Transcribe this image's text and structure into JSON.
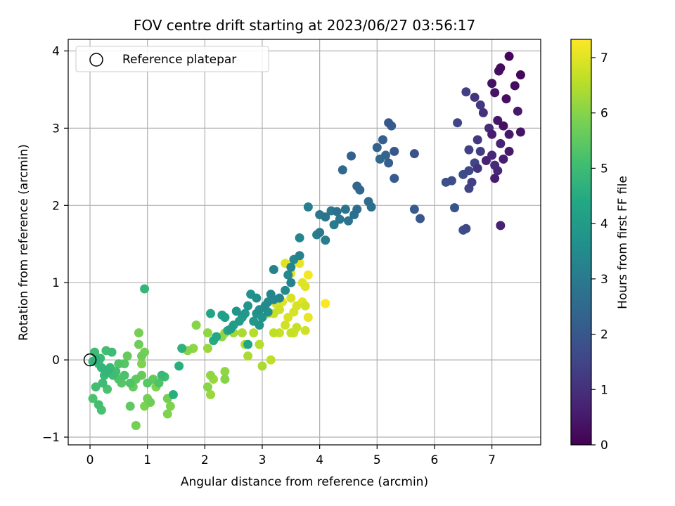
{
  "chart_data": {
    "type": "scatter",
    "title": "FOV centre drift starting at 2023/06/27 03:56:17",
    "xlabel": "Angular distance from reference (arcmin)",
    "ylabel": "Rotation from reference (arcmin)",
    "xlim": [
      -0.38,
      7.85
    ],
    "ylim": [
      -1.1,
      4.15
    ],
    "xticks": [
      0,
      1,
      2,
      3,
      4,
      5,
      6,
      7
    ],
    "yticks": [
      -1,
      0,
      1,
      2,
      3,
      4
    ],
    "grid": true,
    "colormap": "viridis",
    "colorbar": {
      "label": "Hours from first FF file",
      "range": [
        0,
        7.33
      ],
      "ticks": [
        0,
        1,
        2,
        3,
        4,
        5,
        6,
        7
      ]
    },
    "legend": {
      "placement": "top-left",
      "entries": [
        {
          "label": "Reference platepar",
          "marker": "hollow-circle"
        }
      ]
    },
    "reference_point": {
      "x": 0,
      "y": 0
    },
    "points": [
      [
        7.3,
        3.93,
        0.1
      ],
      [
        7.15,
        3.78,
        0.2
      ],
      [
        7.5,
        3.69,
        0.15
      ],
      [
        7.12,
        3.74,
        0.3
      ],
      [
        7.0,
        3.58,
        0.35
      ],
      [
        7.4,
        3.55,
        0.25
      ],
      [
        7.05,
        3.46,
        0.4
      ],
      [
        7.25,
        3.38,
        0.3
      ],
      [
        7.45,
        3.22,
        0.5
      ],
      [
        7.1,
        3.1,
        0.45
      ],
      [
        7.2,
        3.03,
        0.3
      ],
      [
        7.5,
        2.95,
        0.4
      ],
      [
        7.3,
        2.92,
        0.5
      ],
      [
        7.0,
        2.92,
        0.6
      ],
      [
        7.15,
        2.8,
        0.7
      ],
      [
        7.3,
        2.7,
        0.5
      ],
      [
        7.0,
        2.65,
        0.8
      ],
      [
        7.2,
        2.6,
        0.6
      ],
      [
        7.05,
        2.52,
        0.9
      ],
      [
        6.9,
        2.58,
        0.7
      ],
      [
        7.1,
        2.45,
        0.8
      ],
      [
        7.05,
        2.35,
        0.6
      ],
      [
        7.15,
        1.74,
        0.7
      ],
      [
        6.55,
        3.47,
        1.3
      ],
      [
        6.7,
        3.4,
        1.1
      ],
      [
        6.8,
        3.3,
        1.2
      ],
      [
        6.85,
        3.2,
        1.0
      ],
      [
        6.4,
        3.07,
        1.5
      ],
      [
        6.75,
        2.85,
        1.2
      ],
      [
        6.6,
        2.72,
        1.4
      ],
      [
        6.8,
        2.7,
        1.3
      ],
      [
        6.7,
        2.55,
        1.5
      ],
      [
        6.6,
        2.45,
        1.6
      ],
      [
        6.5,
        2.4,
        1.7
      ],
      [
        6.65,
        2.3,
        1.4
      ],
      [
        6.6,
        2.22,
        1.5
      ],
      [
        6.2,
        2.3,
        1.8
      ],
      [
        6.3,
        2.32,
        1.7
      ],
      [
        6.35,
        1.97,
        1.9
      ],
      [
        6.55,
        1.7,
        1.6
      ],
      [
        6.5,
        1.68,
        1.8
      ],
      [
        6.95,
        3.0,
        0.9
      ],
      [
        6.75,
        2.48,
        1.1
      ],
      [
        5.2,
        3.07,
        2.0
      ],
      [
        5.25,
        3.03,
        2.1
      ],
      [
        5.1,
        2.85,
        2.2
      ],
      [
        5.0,
        2.75,
        2.3
      ],
      [
        5.3,
        2.7,
        2.0
      ],
      [
        5.15,
        2.65,
        2.4
      ],
      [
        5.05,
        2.6,
        2.5
      ],
      [
        5.2,
        2.55,
        2.2
      ],
      [
        5.65,
        2.67,
        1.9
      ],
      [
        5.3,
        2.35,
        2.1
      ],
      [
        4.55,
        2.64,
        2.3
      ],
      [
        4.4,
        2.46,
        2.5
      ],
      [
        4.65,
        2.25,
        2.4
      ],
      [
        4.7,
        2.2,
        2.5
      ],
      [
        4.85,
        2.05,
        2.6
      ],
      [
        4.9,
        1.98,
        2.7
      ],
      [
        5.65,
        1.95,
        2.1
      ],
      [
        5.75,
        1.83,
        2.0
      ],
      [
        4.65,
        1.95,
        2.6
      ],
      [
        4.6,
        1.88,
        2.7
      ],
      [
        4.45,
        1.95,
        2.8
      ],
      [
        4.3,
        1.92,
        2.7
      ],
      [
        4.2,
        1.93,
        2.9
      ],
      [
        4.1,
        1.85,
        2.8
      ],
      [
        4.35,
        1.82,
        2.9
      ],
      [
        4.5,
        1.8,
        2.8
      ],
      [
        4.25,
        1.75,
        3.0
      ],
      [
        4.0,
        1.88,
        2.9
      ],
      [
        3.8,
        1.98,
        3.1
      ],
      [
        4.0,
        1.65,
        3.0
      ],
      [
        3.95,
        1.62,
        3.2
      ],
      [
        4.1,
        1.55,
        3.1
      ],
      [
        3.65,
        1.58,
        3.3
      ],
      [
        3.65,
        1.35,
        3.2
      ],
      [
        3.55,
        1.3,
        3.4
      ],
      [
        3.5,
        1.2,
        3.3
      ],
      [
        3.45,
        1.1,
        3.4
      ],
      [
        3.5,
        1.0,
        3.2
      ],
      [
        3.4,
        0.9,
        3.5
      ],
      [
        3.3,
        0.8,
        3.3
      ],
      [
        3.2,
        0.78,
        3.4
      ],
      [
        3.1,
        0.75,
        3.5
      ],
      [
        3.15,
        0.85,
        3.3
      ],
      [
        3.2,
        1.17,
        3.2
      ],
      [
        3.05,
        0.7,
        3.5
      ],
      [
        2.95,
        0.65,
        3.6
      ],
      [
        2.9,
        0.8,
        3.6
      ],
      [
        2.8,
        0.85,
        3.7
      ],
      [
        2.9,
        0.6,
        3.7
      ],
      [
        2.75,
        0.7,
        3.8
      ],
      [
        2.7,
        0.6,
        3.9
      ],
      [
        2.65,
        0.55,
        4.0
      ],
      [
        2.55,
        0.63,
        3.8
      ],
      [
        2.6,
        0.5,
        4.0
      ],
      [
        2.5,
        0.45,
        4.1
      ],
      [
        2.45,
        0.4,
        4.0
      ],
      [
        2.4,
        0.38,
        4.2
      ],
      [
        2.35,
        0.55,
        4.1
      ],
      [
        2.3,
        0.58,
        4.2
      ],
      [
        2.1,
        0.6,
        4.3
      ],
      [
        2.2,
        0.3,
        4.4
      ],
      [
        2.15,
        0.25,
        4.5
      ],
      [
        2.85,
        0.5,
        3.9
      ],
      [
        2.95,
        0.45,
        3.8
      ],
      [
        2.75,
        0.2,
        4.3
      ],
      [
        3.0,
        0.55,
        3.7
      ],
      [
        3.1,
        0.62,
        3.6
      ],
      [
        1.45,
        -0.45,
        4.6
      ],
      [
        1.6,
        0.15,
        4.7
      ],
      [
        1.25,
        -0.2,
        4.9
      ],
      [
        1.55,
        -0.08,
        4.6
      ],
      [
        0.95,
        0.92,
        4.8
      ],
      [
        1.3,
        -0.22,
        5.1
      ],
      [
        1.2,
        -0.3,
        5.3
      ],
      [
        1.1,
        -0.25,
        5.5
      ],
      [
        1.0,
        -0.3,
        5.4
      ],
      [
        0.9,
        -0.2,
        5.6
      ],
      [
        0.8,
        -0.25,
        5.5
      ],
      [
        0.7,
        -0.3,
        5.3
      ],
      [
        0.6,
        -0.2,
        5.2
      ],
      [
        0.55,
        -0.3,
        5.4
      ],
      [
        0.5,
        -0.25,
        5.3
      ],
      [
        0.45,
        -0.15,
        5.1
      ],
      [
        0.4,
        -0.2,
        5.0
      ],
      [
        0.35,
        -0.1,
        4.9
      ],
      [
        0.3,
        -0.15,
        4.8
      ],
      [
        0.25,
        -0.2,
        4.9
      ],
      [
        0.2,
        -0.1,
        4.8
      ],
      [
        0.15,
        -0.05,
        4.9
      ],
      [
        0.1,
        0.0,
        4.7
      ],
      [
        0.05,
        -0.02,
        4.8
      ],
      [
        0.08,
        0.1,
        5.0
      ],
      [
        0.18,
        0.02,
        4.9
      ],
      [
        0.28,
        0.12,
        5.1
      ],
      [
        0.38,
        0.1,
        5.0
      ],
      [
        0.3,
        -0.38,
        5.2
      ],
      [
        0.22,
        -0.3,
        5.0
      ],
      [
        0.1,
        -0.35,
        5.1
      ],
      [
        0.05,
        -0.5,
        5.2
      ],
      [
        0.15,
        -0.58,
        5.1
      ],
      [
        0.2,
        -0.65,
        5.2
      ],
      [
        0.7,
        -0.6,
        5.5
      ],
      [
        0.65,
        0.05,
        5.6
      ],
      [
        0.85,
        0.35,
        5.8
      ],
      [
        0.85,
        0.2,
        5.7
      ],
      [
        0.9,
        0.05,
        5.7
      ],
      [
        0.95,
        0.1,
        5.8
      ],
      [
        0.9,
        -0.05,
        5.9
      ],
      [
        0.8,
        -0.85,
        5.8
      ],
      [
        0.95,
        -0.6,
        5.9
      ],
      [
        1.0,
        -0.5,
        5.8
      ],
      [
        1.05,
        -0.55,
        5.7
      ],
      [
        1.35,
        -0.7,
        5.9
      ],
      [
        1.4,
        -0.6,
        5.9
      ],
      [
        1.35,
        -0.5,
        5.8
      ],
      [
        1.15,
        -0.35,
        5.9
      ],
      [
        0.75,
        -0.35,
        5.6
      ],
      [
        0.6,
        -0.05,
        5.4
      ],
      [
        0.5,
        -0.05,
        5.3
      ],
      [
        1.7,
        0.12,
        6.0
      ],
      [
        1.8,
        0.15,
        6.1
      ],
      [
        1.85,
        0.45,
        6.0
      ],
      [
        2.05,
        0.35,
        6.1
      ],
      [
        2.05,
        0.15,
        6.2
      ],
      [
        2.1,
        -0.2,
        6.1
      ],
      [
        2.15,
        -0.25,
        6.2
      ],
      [
        2.05,
        -0.35,
        6.0
      ],
      [
        2.1,
        -0.45,
        6.2
      ],
      [
        2.35,
        -0.15,
        6.1
      ],
      [
        2.35,
        -0.25,
        6.0
      ],
      [
        2.3,
        0.3,
        6.1
      ],
      [
        2.35,
        0.35,
        6.2
      ],
      [
        2.5,
        0.35,
        6.3
      ],
      [
        2.65,
        0.35,
        6.4
      ],
      [
        2.7,
        0.2,
        6.5
      ],
      [
        2.75,
        0.05,
        6.4
      ],
      [
        2.85,
        0.35,
        6.5
      ],
      [
        2.95,
        0.2,
        6.5
      ],
      [
        3.0,
        -0.08,
        6.4
      ],
      [
        3.15,
        0.0,
        6.6
      ],
      [
        3.2,
        0.35,
        6.6
      ],
      [
        3.3,
        0.35,
        6.7
      ],
      [
        3.4,
        0.45,
        6.8
      ],
      [
        3.5,
        0.35,
        6.7
      ],
      [
        3.55,
        0.35,
        6.8
      ],
      [
        3.6,
        0.42,
        6.7
      ],
      [
        3.75,
        0.38,
        6.8
      ],
      [
        3.55,
        0.62,
        6.9
      ],
      [
        3.6,
        0.7,
        6.9
      ],
      [
        3.7,
        0.75,
        7.0
      ],
      [
        3.75,
        0.7,
        6.8
      ],
      [
        3.45,
        0.55,
        6.9
      ],
      [
        3.3,
        0.65,
        6.8
      ],
      [
        3.25,
        0.72,
        6.9
      ],
      [
        3.2,
        0.6,
        6.7
      ],
      [
        3.35,
        0.75,
        7.0
      ],
      [
        3.5,
        0.8,
        6.9
      ],
      [
        3.75,
        0.95,
        7.0
      ],
      [
        3.8,
        0.55,
        7.1
      ],
      [
        3.4,
        1.25,
        7.0
      ],
      [
        3.65,
        1.25,
        7.1
      ],
      [
        3.7,
        1.0,
        7.0
      ],
      [
        3.8,
        1.1,
        7.2
      ],
      [
        3.5,
        1.12,
        7.1
      ],
      [
        4.1,
        0.73,
        7.3
      ],
      [
        3.1,
        0.6,
        6.5
      ]
    ]
  }
}
